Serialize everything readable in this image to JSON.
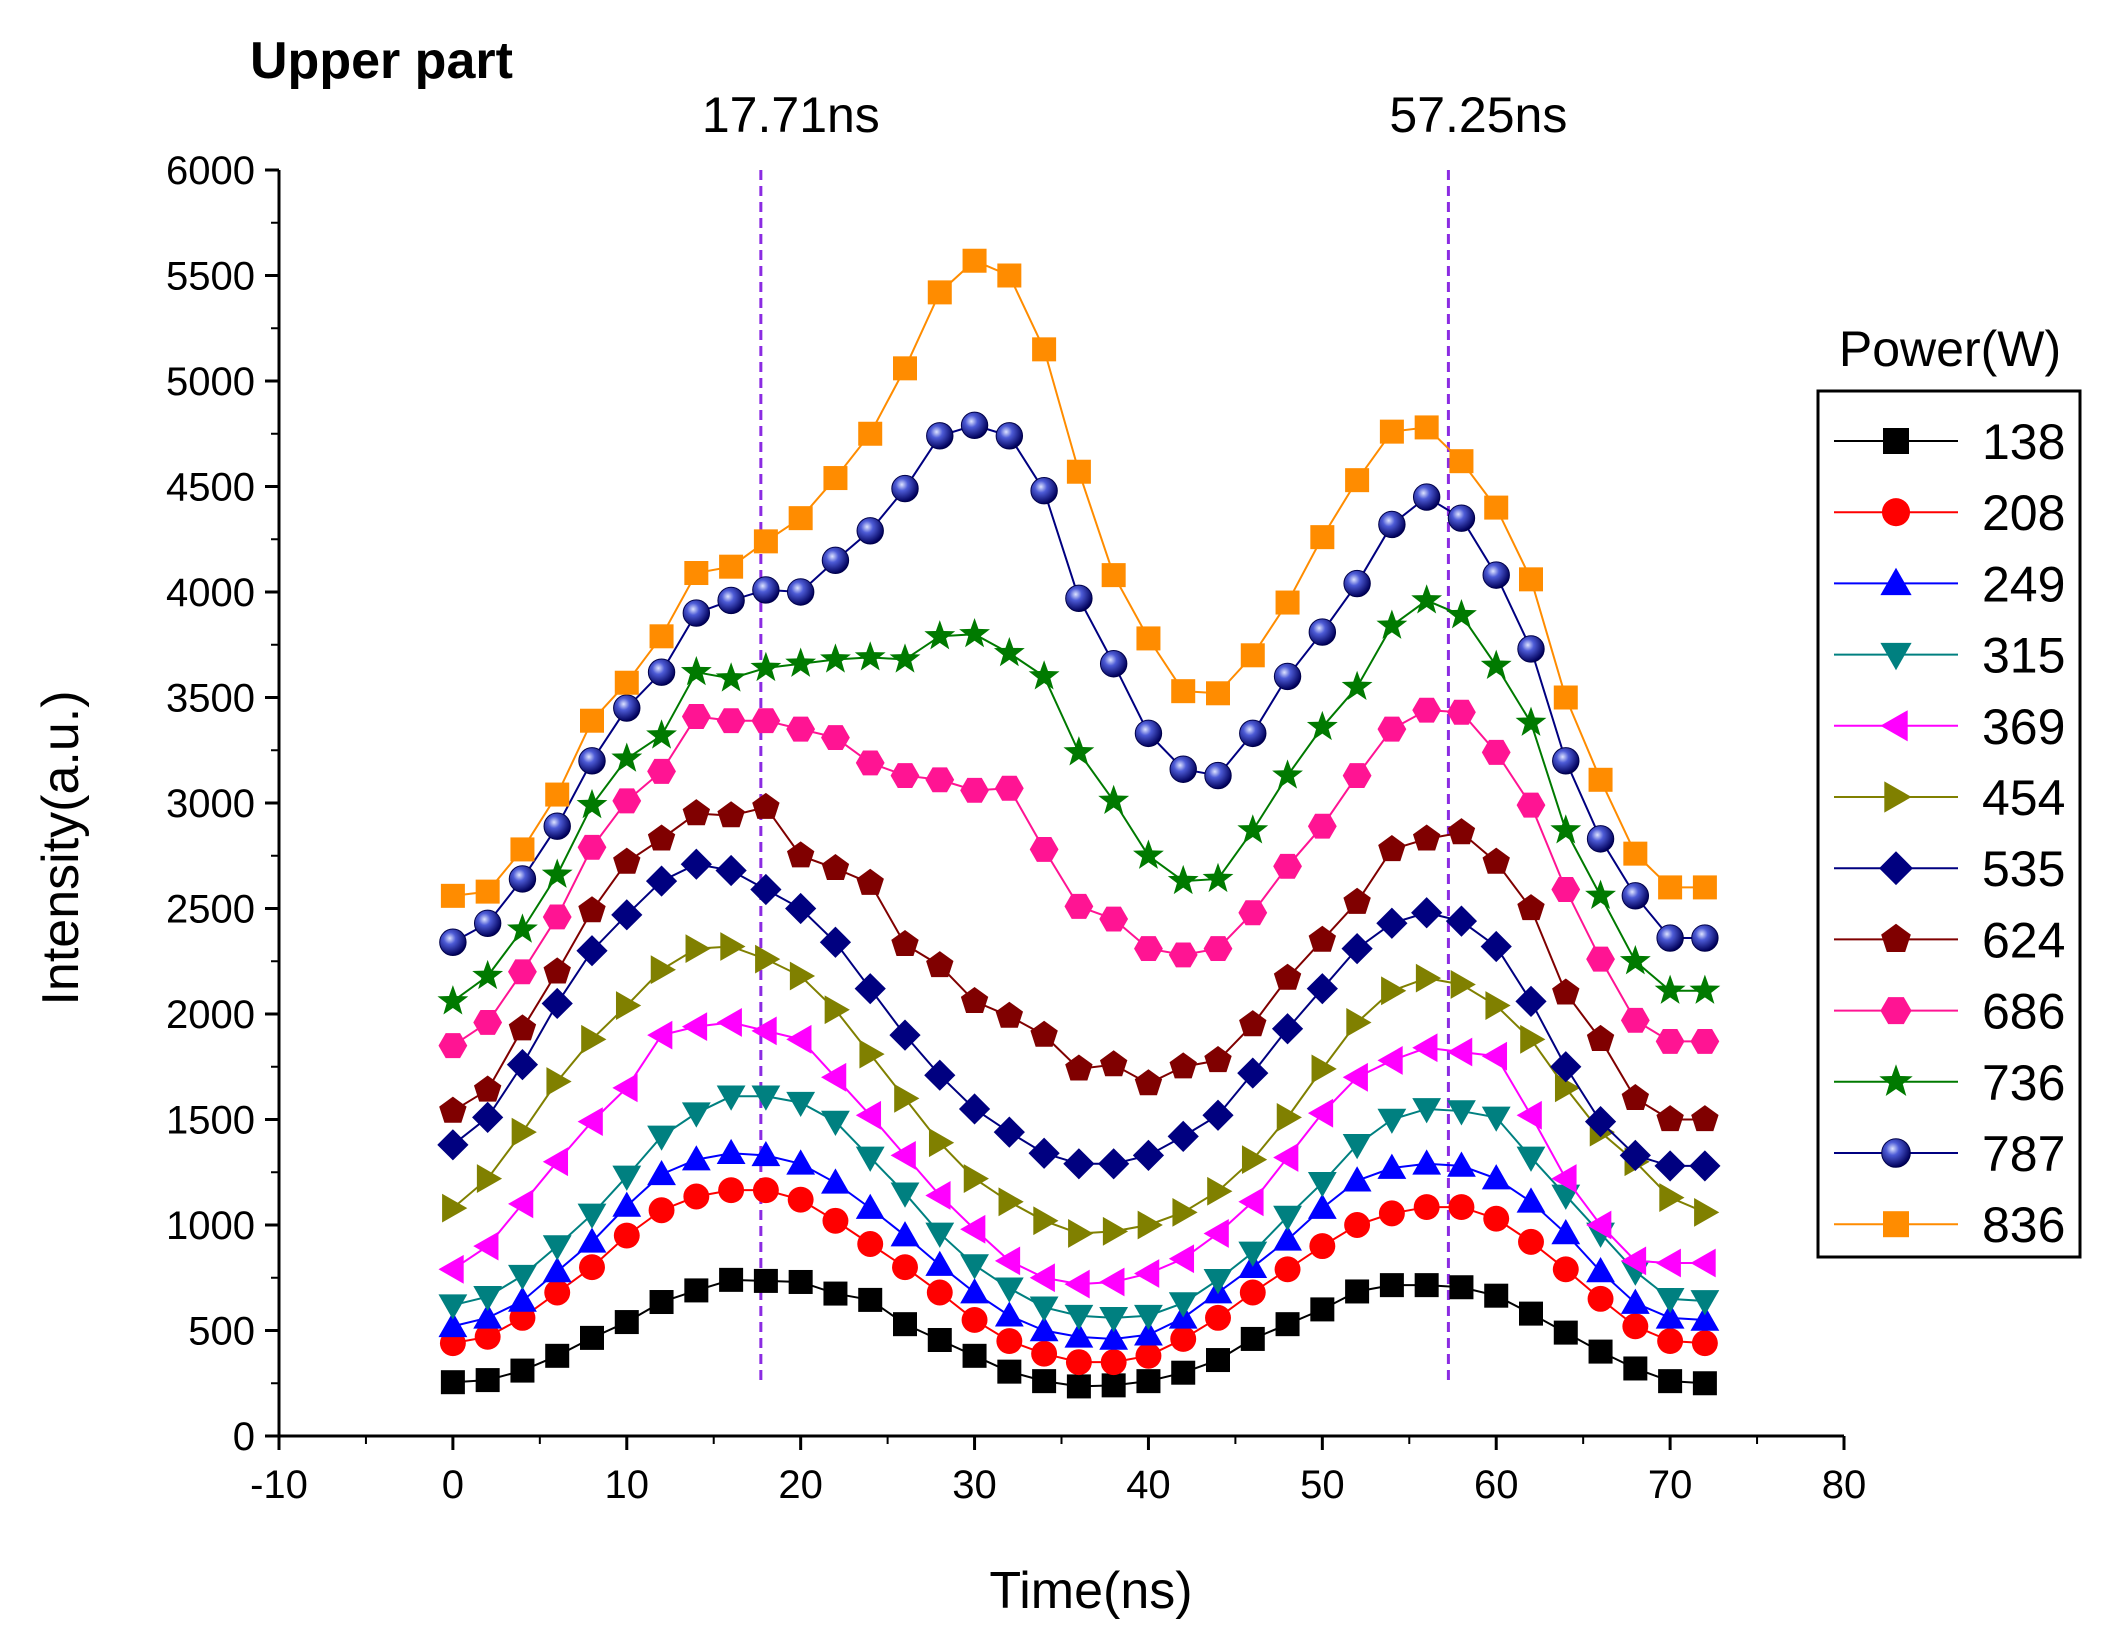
{
  "chart_data": {
    "type": "line",
    "title": "Upper part",
    "xlabel": "Time(ns)",
    "ylabel": "Intensity(a.u.)",
    "xlim": [
      -10,
      80
    ],
    "ylim": [
      0,
      6000
    ],
    "x_ticks": [
      "-10",
      "0",
      "10",
      "20",
      "30",
      "40",
      "50",
      "60",
      "70",
      "80"
    ],
    "y_ticks": [
      "0",
      "500",
      "1000",
      "1500",
      "2000",
      "2500",
      "3000",
      "3500",
      "4000",
      "4500",
      "5000",
      "5500",
      "6000"
    ],
    "vlines": [
      {
        "x": 17.71,
        "label": "17.71ns",
        "color": "#8b2be2"
      },
      {
        "x": 57.25,
        "label": "57.25ns",
        "color": "#8b2be2"
      }
    ],
    "legend_title": "Power(W)",
    "legend_position": "right",
    "x": [
      0,
      2,
      4,
      6,
      8,
      10,
      12,
      14,
      16,
      18,
      20,
      22,
      24,
      26,
      28,
      30,
      32,
      34,
      36,
      38,
      40,
      42,
      44,
      46,
      48,
      50,
      52,
      54,
      56,
      58,
      60,
      62,
      64,
      66,
      68,
      70,
      72
    ],
    "series": [
      {
        "name": "138",
        "color": "#000000",
        "marker": "square",
        "values": [
          255,
          265,
          310,
          380,
          465,
          540,
          635,
          690,
          740,
          735,
          730,
          675,
          645,
          530,
          455,
          380,
          305,
          260,
          235,
          240,
          260,
          300,
          360,
          460,
          530,
          600,
          685,
          715,
          715,
          705,
          665,
          580,
          490,
          400,
          320,
          260,
          250
        ]
      },
      {
        "name": "208",
        "color": "#ff0000",
        "marker": "circle",
        "values": [
          440,
          470,
          560,
          680,
          800,
          950,
          1070,
          1135,
          1165,
          1165,
          1120,
          1020,
          910,
          800,
          680,
          550,
          450,
          390,
          350,
          350,
          380,
          460,
          560,
          680,
          790,
          900,
          1000,
          1055,
          1085,
          1085,
          1030,
          920,
          790,
          650,
          520,
          450,
          440
        ]
      },
      {
        "name": "249",
        "color": "#0000ff",
        "marker": "triangle-up",
        "values": [
          520,
          560,
          640,
          780,
          920,
          1090,
          1240,
          1310,
          1340,
          1330,
          1290,
          1200,
          1080,
          950,
          810,
          680,
          570,
          500,
          470,
          460,
          480,
          560,
          680,
          800,
          930,
          1080,
          1210,
          1270,
          1290,
          1280,
          1220,
          1110,
          960,
          780,
          630,
          560,
          550
        ]
      },
      {
        "name": "315",
        "color": "#008080",
        "marker": "triangle-down",
        "values": [
          620,
          660,
          760,
          900,
          1050,
          1230,
          1420,
          1530,
          1610,
          1610,
          1580,
          1490,
          1320,
          1150,
          960,
          810,
          700,
          610,
          570,
          560,
          570,
          630,
          740,
          870,
          1040,
          1200,
          1380,
          1500,
          1550,
          1540,
          1510,
          1320,
          1140,
          960,
          780,
          650,
          640
        ]
      },
      {
        "name": "369",
        "color": "#ff00ff",
        "marker": "triangle-left",
        "values": [
          790,
          900,
          1100,
          1300,
          1490,
          1650,
          1900,
          1940,
          1960,
          1920,
          1880,
          1700,
          1520,
          1330,
          1140,
          980,
          830,
          750,
          720,
          730,
          770,
          840,
          960,
          1110,
          1320,
          1530,
          1700,
          1780,
          1840,
          1820,
          1800,
          1520,
          1220,
          1000,
          830,
          820,
          820
        ]
      },
      {
        "name": "454",
        "color": "#808000",
        "marker": "triangle-right",
        "values": [
          1080,
          1220,
          1440,
          1680,
          1880,
          2040,
          2210,
          2310,
          2320,
          2260,
          2180,
          2020,
          1810,
          1600,
          1390,
          1220,
          1110,
          1020,
          960,
          970,
          1000,
          1060,
          1160,
          1310,
          1510,
          1740,
          1960,
          2110,
          2170,
          2140,
          2040,
          1880,
          1650,
          1440,
          1300,
          1130,
          1060
        ]
      },
      {
        "name": "535",
        "color": "#000080",
        "marker": "diamond",
        "values": [
          1380,
          1510,
          1760,
          2050,
          2300,
          2470,
          2630,
          2710,
          2680,
          2590,
          2500,
          2340,
          2120,
          1900,
          1710,
          1550,
          1440,
          1340,
          1290,
          1290,
          1330,
          1420,
          1520,
          1720,
          1930,
          2120,
          2310,
          2430,
          2480,
          2440,
          2320,
          2060,
          1750,
          1490,
          1330,
          1280,
          1280
        ]
      },
      {
        "name": "624",
        "color": "#800000",
        "marker": "pentagon",
        "values": [
          1540,
          1640,
          1930,
          2200,
          2490,
          2720,
          2830,
          2950,
          2940,
          2980,
          2750,
          2690,
          2620,
          2330,
          2230,
          2060,
          1990,
          1900,
          1740,
          1760,
          1670,
          1750,
          1780,
          1950,
          2170,
          2350,
          2530,
          2780,
          2830,
          2860,
          2720,
          2500,
          2100,
          1880,
          1600,
          1500,
          1500
        ]
      },
      {
        "name": "686",
        "color": "#ff1493",
        "marker": "hexagon",
        "values": [
          1850,
          1960,
          2200,
          2460,
          2790,
          3010,
          3150,
          3410,
          3390,
          3390,
          3350,
          3310,
          3190,
          3130,
          3110,
          3060,
          3070,
          2780,
          2510,
          2450,
          2310,
          2280,
          2310,
          2480,
          2700,
          2890,
          3130,
          3350,
          3440,
          3430,
          3240,
          2990,
          2590,
          2260,
          1970,
          1870,
          1870
        ]
      },
      {
        "name": "736",
        "color": "#007a00",
        "marker": "star",
        "values": [
          2060,
          2180,
          2400,
          2660,
          2990,
          3210,
          3320,
          3620,
          3590,
          3640,
          3660,
          3680,
          3690,
          3680,
          3790,
          3800,
          3710,
          3600,
          3240,
          3010,
          2750,
          2630,
          2640,
          2870,
          3130,
          3360,
          3550,
          3840,
          3960,
          3890,
          3650,
          3380,
          2870,
          2560,
          2250,
          2110,
          2110
        ]
      },
      {
        "name": "787",
        "color": "#000080",
        "marker": "sphere",
        "values": [
          2340,
          2430,
          2640,
          2890,
          3200,
          3450,
          3620,
          3900,
          3960,
          4010,
          4000,
          4150,
          4290,
          4490,
          4740,
          4790,
          4740,
          4480,
          3970,
          3660,
          3330,
          3160,
          3130,
          3330,
          3600,
          3810,
          4040,
          4320,
          4450,
          4350,
          4080,
          3730,
          3200,
          2830,
          2560,
          2360,
          2360
        ]
      },
      {
        "name": "836",
        "color": "#ff8c00",
        "marker": "square",
        "values": [
          2560,
          2580,
          2780,
          3040,
          3390,
          3570,
          3790,
          4090,
          4120,
          4240,
          4350,
          4540,
          4750,
          5060,
          5420,
          5570,
          5500,
          5150,
          4570,
          4080,
          3780,
          3530,
          3520,
          3700,
          3950,
          4260,
          4530,
          4760,
          4780,
          4620,
          4400,
          4060,
          3500,
          3110,
          2760,
          2600,
          2600
        ]
      }
    ]
  }
}
